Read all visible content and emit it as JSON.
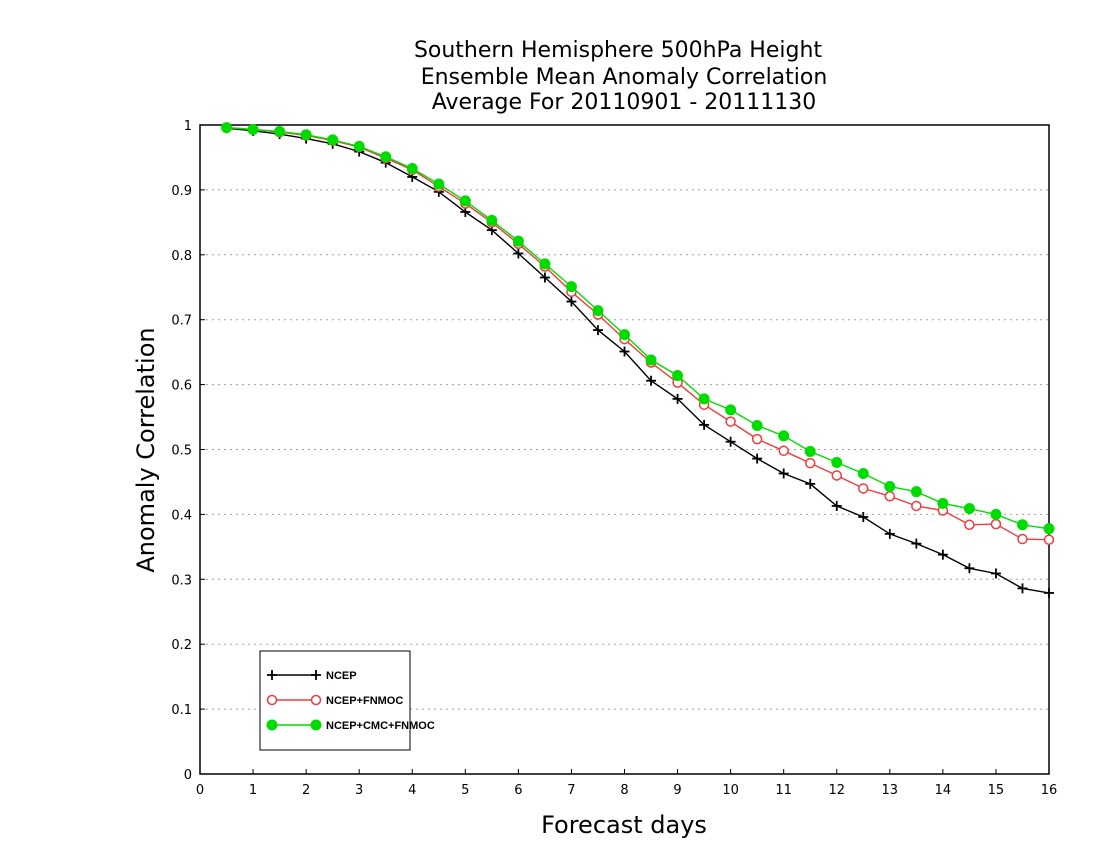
{
  "chart_data": {
    "type": "line",
    "title": [
      "Southern Hemisphere 500hPa Height",
      "Ensemble Mean Anomaly Correlation",
      "Average For 20110901 - 20111130"
    ],
    "xlabel": "Forecast days",
    "ylabel": "Anomaly Correlation",
    "xlim": [
      0,
      16
    ],
    "ylim": [
      0,
      1
    ],
    "x_ticks": [
      "0",
      "1",
      "2",
      "3",
      "4",
      "5",
      "6",
      "7",
      "8",
      "9",
      "10",
      "11",
      "12",
      "13",
      "14",
      "15",
      "16"
    ],
    "y_ticks": [
      "0",
      "0.1",
      "0.2",
      "0.3",
      "0.4",
      "0.5",
      "0.6",
      "0.7",
      "0.8",
      "0.9",
      "1"
    ],
    "grid": true,
    "legend_position": "bottom-left",
    "x": [
      0.5,
      1,
      1.5,
      2,
      2.5,
      3,
      3.5,
      4,
      4.5,
      5,
      5.5,
      6,
      6.5,
      7,
      7.5,
      8,
      8.5,
      9,
      9.5,
      10,
      10.5,
      11,
      11.5,
      12,
      12.5,
      13,
      13.5,
      14,
      14.5,
      15,
      15.5,
      16
    ],
    "series": [
      {
        "name": "NCEP",
        "color": "#000000",
        "marker": "plus",
        "values": [
          0.995,
          0.991,
          0.986,
          0.979,
          0.971,
          0.959,
          0.942,
          0.92,
          0.897,
          0.866,
          0.838,
          0.802,
          0.765,
          0.728,
          0.684,
          0.651,
          0.606,
          0.578,
          0.538,
          0.512,
          0.486,
          0.463,
          0.447,
          0.413,
          0.396,
          0.37,
          0.355,
          0.338,
          0.317,
          0.309,
          0.286,
          0.279
        ]
      },
      {
        "name": "NCEP+FNMOC",
        "color": "#f03c3c",
        "marker": "open-circle",
        "values": [
          0.996,
          0.993,
          0.989,
          0.984,
          0.976,
          0.966,
          0.949,
          0.931,
          0.905,
          0.879,
          0.85,
          0.817,
          0.782,
          0.743,
          0.708,
          0.67,
          0.634,
          0.603,
          0.569,
          0.543,
          0.516,
          0.498,
          0.479,
          0.46,
          0.44,
          0.428,
          0.413,
          0.406,
          0.384,
          0.385,
          0.362,
          0.361
        ]
      },
      {
        "name": "NCEP+CMC+FNMOC",
        "color": "#00dc00",
        "marker": "filled-circle",
        "values": [
          0.996,
          0.993,
          0.99,
          0.985,
          0.977,
          0.967,
          0.951,
          0.933,
          0.909,
          0.883,
          0.853,
          0.821,
          0.786,
          0.751,
          0.714,
          0.677,
          0.638,
          0.614,
          0.578,
          0.561,
          0.537,
          0.521,
          0.497,
          0.48,
          0.463,
          0.443,
          0.435,
          0.417,
          0.409,
          0.4,
          0.384,
          0.378
        ]
      }
    ]
  }
}
